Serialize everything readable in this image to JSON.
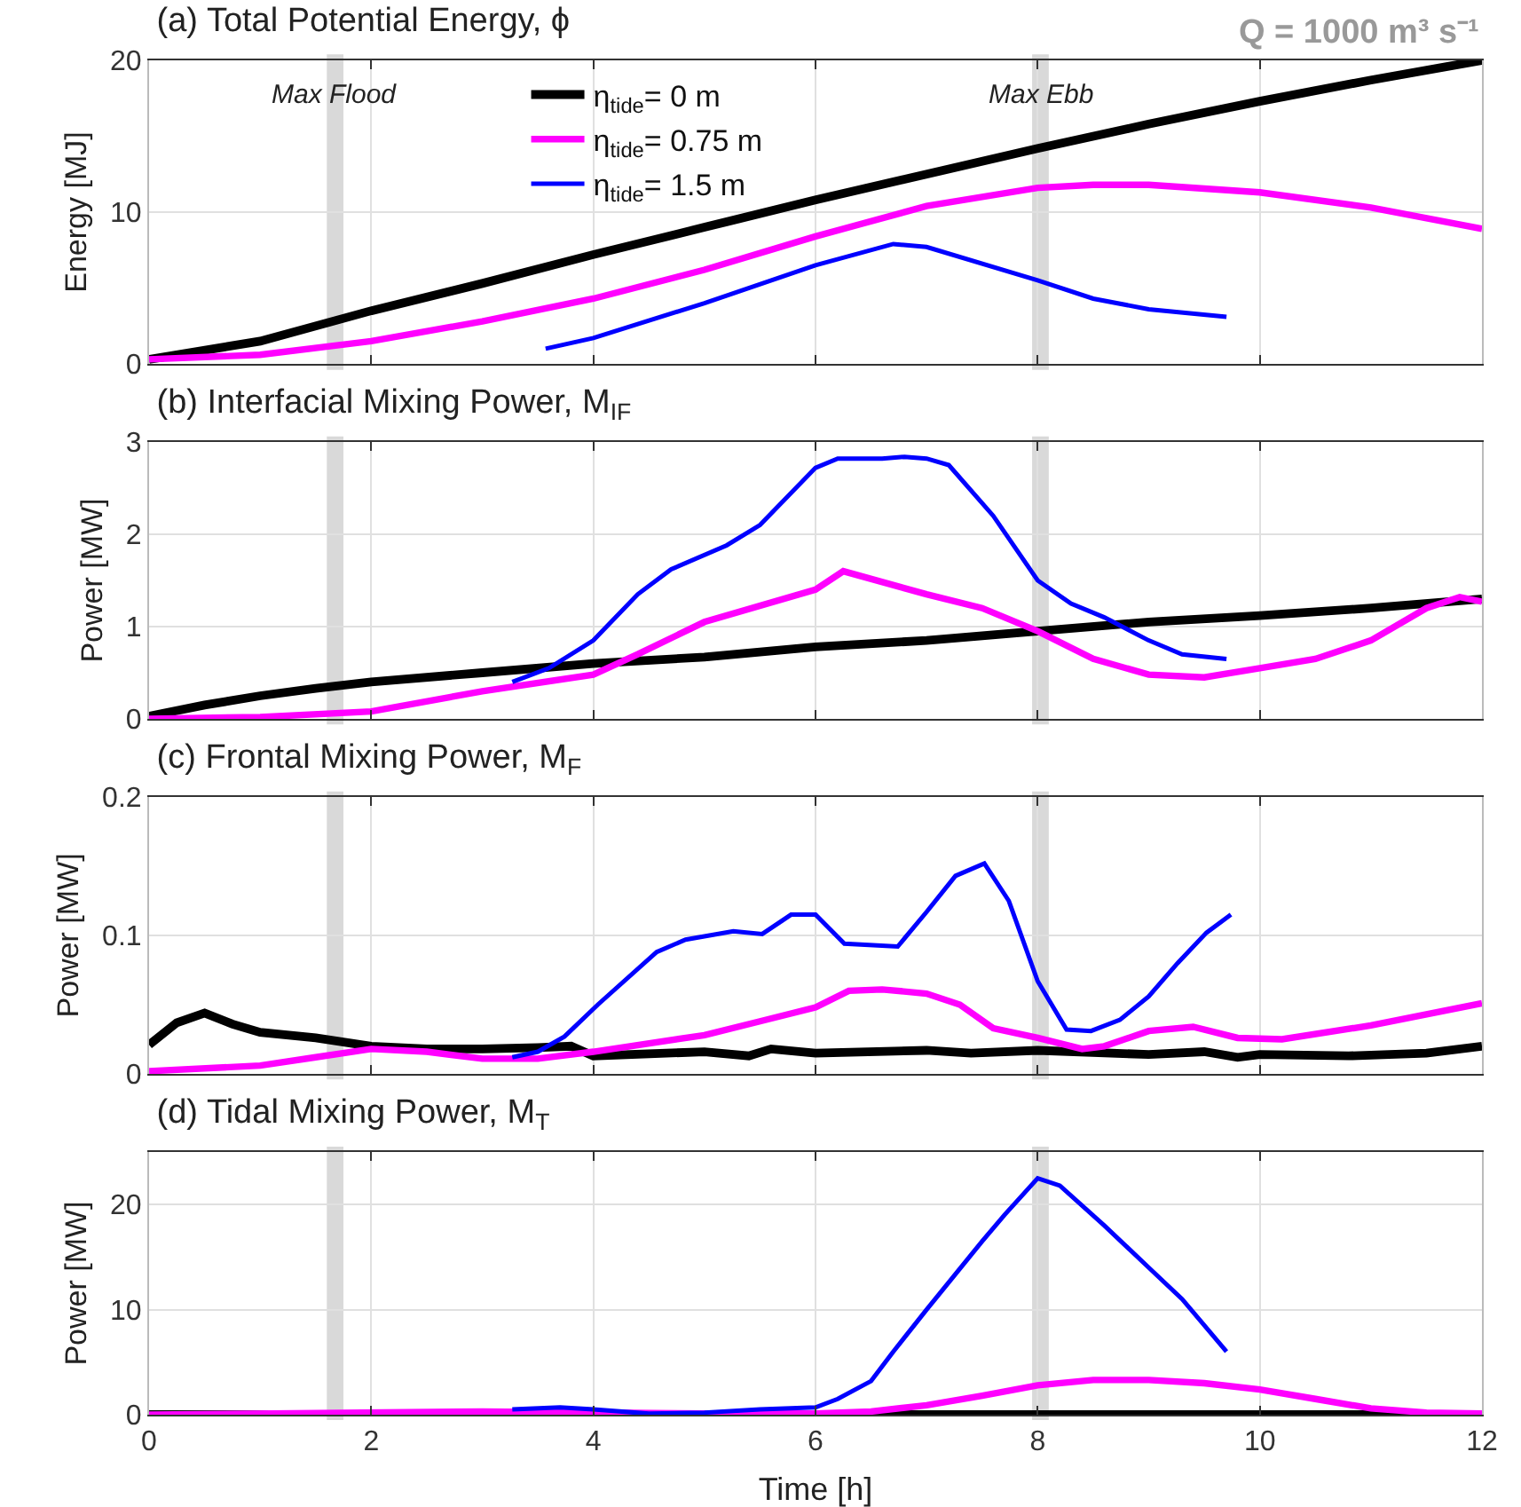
{
  "chart_data": [
    {
      "type": "line",
      "title": "(a) Total Potential Energy, ϕ",
      "ylabel": "Energy [MJ]",
      "xlim": [
        0,
        12
      ],
      "xticks": [
        0,
        2,
        4,
        6,
        8,
        10,
        12
      ],
      "ylim": [
        0,
        20
      ],
      "yticks": [
        0,
        10,
        20
      ],
      "grid": true,
      "tick_labels": "y",
      "legend": "top left",
      "annotations": [
        "Q = 1000 m³ s⁻¹"
      ],
      "bands": [
        {
          "axis": "x",
          "from": 1.6,
          "to": 1.75,
          "label": "Max Flood",
          "color": "#d9d9d9"
        },
        {
          "axis": "x",
          "from": 7.95,
          "to": 8.1,
          "label": "Max Ebb",
          "color": "#d9d9d9"
        }
      ],
      "series": [
        {
          "name": "η$_{tide}$= 0 m",
          "color": "#000000",
          "x": [
            0,
            1,
            2,
            3,
            4,
            5,
            6,
            7,
            8,
            9,
            10,
            11,
            12
          ],
          "values": [
            0.3,
            1.5,
            3.5,
            5.3,
            7.2,
            9,
            10.8,
            12.5,
            14.2,
            15.8,
            17.3,
            18.7,
            20
          ]
        },
        {
          "name": "η$_{tide}$= 0.75 m",
          "color": "#ff00ff",
          "x": [
            0,
            1,
            2,
            3,
            4,
            5,
            6,
            7,
            8,
            8.5,
            9,
            10,
            11,
            12
          ],
          "values": [
            0.3,
            0.6,
            1.5,
            2.8,
            4.3,
            6.2,
            8.4,
            10.4,
            11.6,
            11.8,
            11.8,
            11.3,
            10.3,
            8.9
          ]
        },
        {
          "name": "η$_{tide}$= 1.5 m",
          "color": "#0000ff",
          "x": [
            3.57,
            4,
            5,
            6,
            6.7,
            7,
            8,
            8.5,
            9,
            9.7
          ],
          "values": [
            1,
            1.7,
            4,
            6.5,
            7.9,
            7.7,
            5.5,
            4.3,
            3.6,
            3.1
          ]
        }
      ]
    },
    {
      "type": "line",
      "title": "(b) Interfacial Mixing Power, M$_{IF}$",
      "ylabel": "Power [MW]",
      "xlim": [
        0,
        12
      ],
      "xticks": [
        0,
        2,
        4,
        6,
        8,
        10,
        12
      ],
      "ylim": [
        0,
        3
      ],
      "yticks": [
        0,
        1,
        2,
        3
      ],
      "grid": true,
      "tick_labels": "y",
      "bands": [
        {
          "axis": "x",
          "from": 1.6,
          "to": 1.75,
          "color": "#d9d9d9"
        },
        {
          "axis": "x",
          "from": 7.95,
          "to": 8.1,
          "color": "#d9d9d9"
        }
      ],
      "series": [
        {
          "color": "#000000",
          "x": [
            0,
            0.5,
            1,
            1.5,
            2,
            3,
            4,
            5,
            6,
            7,
            8,
            9,
            10,
            11,
            12
          ],
          "values": [
            0.03,
            0.15,
            0.25,
            0.33,
            0.4,
            0.5,
            0.6,
            0.67,
            0.78,
            0.85,
            0.95,
            1.05,
            1.12,
            1.2,
            1.3
          ]
        },
        {
          "color": "#ff00ff",
          "x": [
            0,
            1,
            2,
            3,
            4,
            4.4,
            5,
            6,
            6.25,
            7,
            7.5,
            8,
            8.5,
            9,
            9.5,
            10,
            10.5,
            11,
            11.5,
            11.8,
            12
          ],
          "values": [
            0,
            0.02,
            0.08,
            0.3,
            0.48,
            0.7,
            1.05,
            1.4,
            1.6,
            1.35,
            1.2,
            0.95,
            0.65,
            0.48,
            0.45,
            0.55,
            0.65,
            0.85,
            1.2,
            1.32,
            1.27
          ]
        },
        {
          "color": "#0000ff",
          "x": [
            3.27,
            3.6,
            4,
            4.4,
            4.7,
            5.2,
            5.5,
            6,
            6.2,
            6.6,
            6.8,
            7,
            7.2,
            7.6,
            8,
            8.3,
            8.6,
            9,
            9.3,
            9.7
          ],
          "values": [
            0.4,
            0.55,
            0.85,
            1.35,
            1.62,
            1.88,
            2.1,
            2.72,
            2.82,
            2.82,
            2.84,
            2.82,
            2.75,
            2.2,
            1.5,
            1.25,
            1.1,
            0.85,
            0.7,
            0.65
          ]
        }
      ]
    },
    {
      "type": "line",
      "title": "(c) Frontal Mixing Power, M$_{F}$",
      "ylabel": "Power [MW]",
      "xlim": [
        0,
        12
      ],
      "xticks": [
        0,
        2,
        4,
        6,
        8,
        10,
        12
      ],
      "ylim": [
        0,
        0.2
      ],
      "yticks": [
        0,
        0.1,
        0.2
      ],
      "grid": true,
      "tick_labels": "y",
      "bands": [
        {
          "axis": "x",
          "from": 1.6,
          "to": 1.75,
          "color": "#d9d9d9"
        },
        {
          "axis": "x",
          "from": 7.95,
          "to": 8.1,
          "color": "#d9d9d9"
        }
      ],
      "series": [
        {
          "color": "#000000",
          "x": [
            0,
            0.25,
            0.5,
            0.75,
            1,
            1.5,
            2,
            2.5,
            3,
            3.5,
            3.8,
            4,
            5,
            5.4,
            5.6,
            6,
            7,
            7.4,
            8,
            9,
            9.5,
            9.8,
            10,
            10.8,
            11.5,
            12
          ],
          "values": [
            0.021,
            0.037,
            0.044,
            0.036,
            0.03,
            0.026,
            0.02,
            0.018,
            0.018,
            0.019,
            0.02,
            0.013,
            0.016,
            0.013,
            0.018,
            0.015,
            0.017,
            0.015,
            0.017,
            0.014,
            0.016,
            0.012,
            0.014,
            0.013,
            0.015,
            0.02
          ]
        },
        {
          "color": "#ff00ff",
          "x": [
            0,
            1,
            1.5,
            2,
            2.5,
            3,
            3.5,
            4,
            5,
            5.5,
            6,
            6.3,
            6.6,
            7,
            7.3,
            7.6,
            8,
            8.4,
            8.6,
            9,
            9.4,
            9.8,
            10.2,
            11,
            12
          ],
          "values": [
            0.002,
            0.006,
            0.012,
            0.018,
            0.016,
            0.011,
            0.011,
            0.016,
            0.028,
            0.038,
            0.048,
            0.06,
            0.061,
            0.058,
            0.05,
            0.033,
            0.026,
            0.018,
            0.02,
            0.031,
            0.034,
            0.026,
            0.025,
            0.035,
            0.051
          ]
        },
        {
          "color": "#0000ff",
          "x": [
            3.27,
            3.5,
            3.74,
            4.04,
            4.57,
            4.83,
            5.26,
            5.52,
            5.78,
            6,
            6.26,
            6.74,
            7,
            7.26,
            7.52,
            7.74,
            8,
            8.26,
            8.48,
            8.74,
            9,
            9.26,
            9.52,
            9.74
          ],
          "values": [
            0.012,
            0.016,
            0.027,
            0.05,
            0.088,
            0.097,
            0.103,
            0.101,
            0.115,
            0.115,
            0.094,
            0.092,
            0.117,
            0.143,
            0.152,
            0.125,
            0.067,
            0.032,
            0.031,
            0.039,
            0.056,
            0.08,
            0.102,
            0.115
          ]
        }
      ]
    },
    {
      "type": "line",
      "title": "(d) Tidal Mixing Power, M$_{T}$",
      "xlabel": "Time [h]",
      "ylabel": "Power [MW]",
      "xlim": [
        0,
        12
      ],
      "xticks": [
        0,
        2,
        4,
        6,
        8,
        10,
        12
      ],
      "ylim": [
        0,
        25
      ],
      "yticks": [
        0,
        10,
        20
      ],
      "grid": true,
      "bands": [
        {
          "axis": "x",
          "from": 1.6,
          "to": 1.75,
          "color": "#d9d9d9"
        },
        {
          "axis": "x",
          "from": 7.95,
          "to": 8.1,
          "color": "#d9d9d9"
        }
      ],
      "series": [
        {
          "color": "#000000",
          "x": [
            0,
            12
          ],
          "values": [
            0,
            0
          ]
        },
        {
          "color": "#ff00ff",
          "x": [
            0,
            3,
            5,
            6,
            6.5,
            7,
            7.5,
            8,
            8.5,
            9,
            9.5,
            10,
            10.5,
            11,
            11.5,
            12
          ],
          "values": [
            0,
            0.3,
            0.1,
            0.1,
            0.3,
            0.9,
            1.8,
            2.8,
            3.3,
            3.3,
            3,
            2.4,
            1.5,
            0.6,
            0.2,
            0.1
          ]
        },
        {
          "color": "#0000ff",
          "x": [
            3.27,
            3.7,
            4,
            4.5,
            5,
            5.5,
            6,
            6.2,
            6.5,
            6.7,
            7,
            7.5,
            7.7,
            8,
            8.2,
            8.6,
            9,
            9.3,
            9.7
          ],
          "values": [
            0.5,
            0.7,
            0.5,
            0.1,
            0.2,
            0.5,
            0.7,
            1.5,
            3.2,
            6,
            10,
            16.5,
            19,
            22.5,
            21.8,
            18,
            14,
            11,
            6
          ]
        }
      ]
    }
  ]
}
